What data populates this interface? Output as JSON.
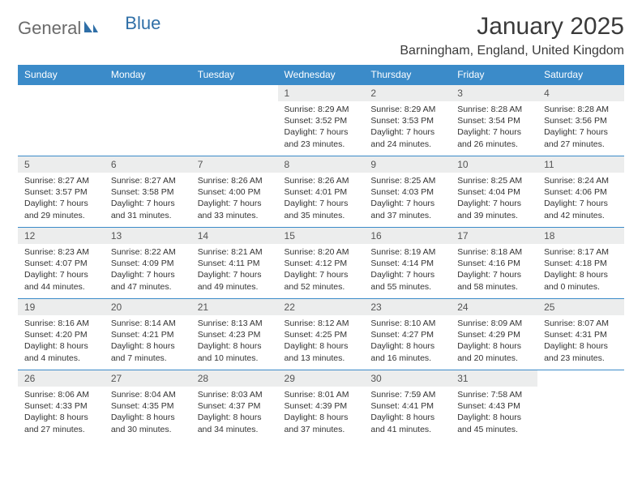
{
  "brand": {
    "general": "General",
    "blue": "Blue"
  },
  "title": "January 2025",
  "location": "Barningham, England, United Kingdom",
  "colors": {
    "header_bg": "#3b8bc9",
    "header_text": "#ffffff",
    "row_border": "#3b8bc9",
    "daynum_bg": "#eceded",
    "text": "#333333",
    "logo_gray": "#6b6b6b",
    "logo_blue": "#2f6fa7"
  },
  "days_of_week": [
    "Sunday",
    "Monday",
    "Tuesday",
    "Wednesday",
    "Thursday",
    "Friday",
    "Saturday"
  ],
  "weeks": [
    [
      {
        "empty": true
      },
      {
        "empty": true
      },
      {
        "empty": true
      },
      {
        "num": "1",
        "sunrise": "Sunrise: 8:29 AM",
        "sunset": "Sunset: 3:52 PM",
        "day1": "Daylight: 7 hours",
        "day2": "and 23 minutes."
      },
      {
        "num": "2",
        "sunrise": "Sunrise: 8:29 AM",
        "sunset": "Sunset: 3:53 PM",
        "day1": "Daylight: 7 hours",
        "day2": "and 24 minutes."
      },
      {
        "num": "3",
        "sunrise": "Sunrise: 8:28 AM",
        "sunset": "Sunset: 3:54 PM",
        "day1": "Daylight: 7 hours",
        "day2": "and 26 minutes."
      },
      {
        "num": "4",
        "sunrise": "Sunrise: 8:28 AM",
        "sunset": "Sunset: 3:56 PM",
        "day1": "Daylight: 7 hours",
        "day2": "and 27 minutes."
      }
    ],
    [
      {
        "num": "5",
        "sunrise": "Sunrise: 8:27 AM",
        "sunset": "Sunset: 3:57 PM",
        "day1": "Daylight: 7 hours",
        "day2": "and 29 minutes."
      },
      {
        "num": "6",
        "sunrise": "Sunrise: 8:27 AM",
        "sunset": "Sunset: 3:58 PM",
        "day1": "Daylight: 7 hours",
        "day2": "and 31 minutes."
      },
      {
        "num": "7",
        "sunrise": "Sunrise: 8:26 AM",
        "sunset": "Sunset: 4:00 PM",
        "day1": "Daylight: 7 hours",
        "day2": "and 33 minutes."
      },
      {
        "num": "8",
        "sunrise": "Sunrise: 8:26 AM",
        "sunset": "Sunset: 4:01 PM",
        "day1": "Daylight: 7 hours",
        "day2": "and 35 minutes."
      },
      {
        "num": "9",
        "sunrise": "Sunrise: 8:25 AM",
        "sunset": "Sunset: 4:03 PM",
        "day1": "Daylight: 7 hours",
        "day2": "and 37 minutes."
      },
      {
        "num": "10",
        "sunrise": "Sunrise: 8:25 AM",
        "sunset": "Sunset: 4:04 PM",
        "day1": "Daylight: 7 hours",
        "day2": "and 39 minutes."
      },
      {
        "num": "11",
        "sunrise": "Sunrise: 8:24 AM",
        "sunset": "Sunset: 4:06 PM",
        "day1": "Daylight: 7 hours",
        "day2": "and 42 minutes."
      }
    ],
    [
      {
        "num": "12",
        "sunrise": "Sunrise: 8:23 AM",
        "sunset": "Sunset: 4:07 PM",
        "day1": "Daylight: 7 hours",
        "day2": "and 44 minutes."
      },
      {
        "num": "13",
        "sunrise": "Sunrise: 8:22 AM",
        "sunset": "Sunset: 4:09 PM",
        "day1": "Daylight: 7 hours",
        "day2": "and 47 minutes."
      },
      {
        "num": "14",
        "sunrise": "Sunrise: 8:21 AM",
        "sunset": "Sunset: 4:11 PM",
        "day1": "Daylight: 7 hours",
        "day2": "and 49 minutes."
      },
      {
        "num": "15",
        "sunrise": "Sunrise: 8:20 AM",
        "sunset": "Sunset: 4:12 PM",
        "day1": "Daylight: 7 hours",
        "day2": "and 52 minutes."
      },
      {
        "num": "16",
        "sunrise": "Sunrise: 8:19 AM",
        "sunset": "Sunset: 4:14 PM",
        "day1": "Daylight: 7 hours",
        "day2": "and 55 minutes."
      },
      {
        "num": "17",
        "sunrise": "Sunrise: 8:18 AM",
        "sunset": "Sunset: 4:16 PM",
        "day1": "Daylight: 7 hours",
        "day2": "and 58 minutes."
      },
      {
        "num": "18",
        "sunrise": "Sunrise: 8:17 AM",
        "sunset": "Sunset: 4:18 PM",
        "day1": "Daylight: 8 hours",
        "day2": "and 0 minutes."
      }
    ],
    [
      {
        "num": "19",
        "sunrise": "Sunrise: 8:16 AM",
        "sunset": "Sunset: 4:20 PM",
        "day1": "Daylight: 8 hours",
        "day2": "and 4 minutes."
      },
      {
        "num": "20",
        "sunrise": "Sunrise: 8:14 AM",
        "sunset": "Sunset: 4:21 PM",
        "day1": "Daylight: 8 hours",
        "day2": "and 7 minutes."
      },
      {
        "num": "21",
        "sunrise": "Sunrise: 8:13 AM",
        "sunset": "Sunset: 4:23 PM",
        "day1": "Daylight: 8 hours",
        "day2": "and 10 minutes."
      },
      {
        "num": "22",
        "sunrise": "Sunrise: 8:12 AM",
        "sunset": "Sunset: 4:25 PM",
        "day1": "Daylight: 8 hours",
        "day2": "and 13 minutes."
      },
      {
        "num": "23",
        "sunrise": "Sunrise: 8:10 AM",
        "sunset": "Sunset: 4:27 PM",
        "day1": "Daylight: 8 hours",
        "day2": "and 16 minutes."
      },
      {
        "num": "24",
        "sunrise": "Sunrise: 8:09 AM",
        "sunset": "Sunset: 4:29 PM",
        "day1": "Daylight: 8 hours",
        "day2": "and 20 minutes."
      },
      {
        "num": "25",
        "sunrise": "Sunrise: 8:07 AM",
        "sunset": "Sunset: 4:31 PM",
        "day1": "Daylight: 8 hours",
        "day2": "and 23 minutes."
      }
    ],
    [
      {
        "num": "26",
        "sunrise": "Sunrise: 8:06 AM",
        "sunset": "Sunset: 4:33 PM",
        "day1": "Daylight: 8 hours",
        "day2": "and 27 minutes."
      },
      {
        "num": "27",
        "sunrise": "Sunrise: 8:04 AM",
        "sunset": "Sunset: 4:35 PM",
        "day1": "Daylight: 8 hours",
        "day2": "and 30 minutes."
      },
      {
        "num": "28",
        "sunrise": "Sunrise: 8:03 AM",
        "sunset": "Sunset: 4:37 PM",
        "day1": "Daylight: 8 hours",
        "day2": "and 34 minutes."
      },
      {
        "num": "29",
        "sunrise": "Sunrise: 8:01 AM",
        "sunset": "Sunset: 4:39 PM",
        "day1": "Daylight: 8 hours",
        "day2": "and 37 minutes."
      },
      {
        "num": "30",
        "sunrise": "Sunrise: 7:59 AM",
        "sunset": "Sunset: 4:41 PM",
        "day1": "Daylight: 8 hours",
        "day2": "and 41 minutes."
      },
      {
        "num": "31",
        "sunrise": "Sunrise: 7:58 AM",
        "sunset": "Sunset: 4:43 PM",
        "day1": "Daylight: 8 hours",
        "day2": "and 45 minutes."
      },
      {
        "empty": true
      }
    ]
  ]
}
